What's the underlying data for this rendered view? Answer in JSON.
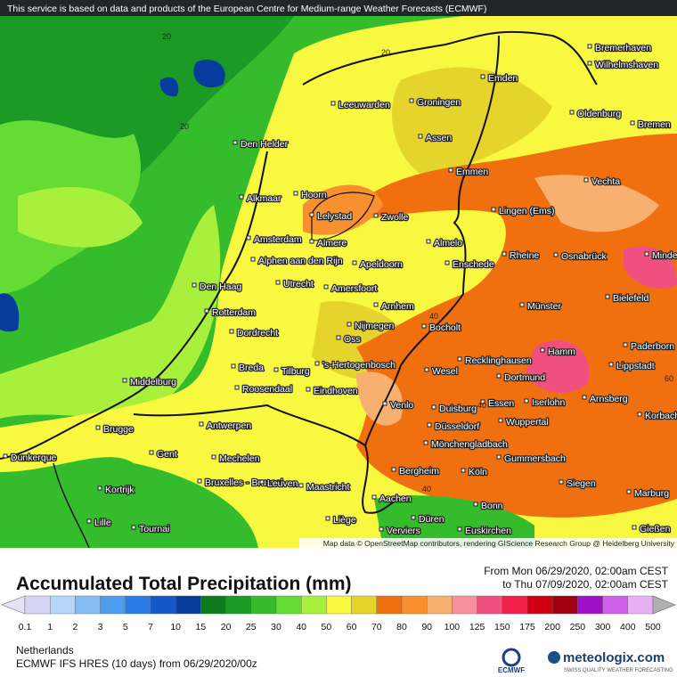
{
  "header": {
    "notice": "This service is based on data and products of the European Centre for Medium-range Weather Forecasts (ECMWF)"
  },
  "map": {
    "cities": [
      "Bremerhaven",
      "Wilhelmshaven",
      "Emden",
      "Leeuwarden",
      "Groningen",
      "Oldenburg",
      "Bremen",
      "Den Helder",
      "Assen",
      "Emmen",
      "Vechta",
      "Hoorn",
      "Alkmaar",
      "Lelystad",
      "Zwolle",
      "Lingen (Ems)",
      "Amsterdam",
      "Almere",
      "Almelo",
      "Rheine",
      "Osnabrück",
      "Minden",
      "Alphen aan den Rijn",
      "Apeldoorn",
      "Enschede",
      "Den Haag",
      "Utrecht",
      "Amersfoort",
      "Bielefeld",
      "Arnhem",
      "Münster",
      "Rotterdam",
      "Nijmegen",
      "Bocholt",
      "Dordrecht",
      "Oss",
      "Hamm",
      "Paderborn",
      "Recklinghausen",
      "Breda",
      "Tilburg",
      "'s-Hertogenbosch",
      "Wesel",
      "Lippstadt",
      "Middelburg",
      "Dortmund",
      "Roosendaal",
      "Eindhoven",
      "Essen",
      "Iserlohn",
      "Arnsberg",
      "Venlo",
      "Duisburg",
      "Korbach",
      "Antwerpen",
      "Brugge",
      "Düsseldorf",
      "Wuppertal",
      "Mönchengladbach",
      "Gent",
      "Dunkerque",
      "Mechelen",
      "Gummersbach",
      "Bergheim",
      "Köln",
      "Bruxelles - Brussel",
      "Leuven",
      "Maastricht",
      "Siegen",
      "Kortrijk",
      "Marburg",
      "Aachen",
      "Bonn",
      "Liège",
      "Düren",
      "Lille",
      "Tournai",
      "Verviers",
      "Euskirchen",
      "Gießen"
    ],
    "contour_labels": [
      "20",
      "20",
      "20",
      "40",
      "40",
      "40",
      "60"
    ],
    "attribution": "Map data © OpenStreetMap contributors, rendering GIScience Research Group @ Heidelberg University"
  },
  "legend": {
    "title": "Accumulated Total Precipitation (mm)",
    "period": {
      "from": "From Mon 06/29/2020, 02:00am CEST",
      "to": "to Thu 07/09/2020, 02:00am CEST"
    },
    "levels": [
      0.1,
      1,
      2,
      3,
      5,
      7,
      10,
      15,
      20,
      25,
      30,
      40,
      50,
      60,
      70,
      80,
      90,
      100,
      125,
      150,
      175,
      200,
      250,
      300,
      400,
      500
    ],
    "colors": [
      "#e6e2f6",
      "#d6d4f2",
      "#b4d4f8",
      "#84bcf6",
      "#4c9cf0",
      "#2a7ce6",
      "#1458c8",
      "#083c9c",
      "#0e7a1e",
      "#1c9a26",
      "#34bc2c",
      "#64dc34",
      "#a8f03c",
      "#f8f840",
      "#e4d42c",
      "#f07010",
      "#f89030",
      "#f8b070",
      "#f8909c",
      "#f05080",
      "#f02048",
      "#d00010",
      "#a00010",
      "#a010c8",
      "#d060e8",
      "#e8b0f4",
      "#b0b0b0"
    ]
  },
  "footer": {
    "region": "Netherlands",
    "model": "ECMWF IFS HRES (10 days) from 06/29/2020/00z",
    "ecmwf_logo": "ECMWF",
    "brand": "meteologix.com",
    "tagline": "SWISS QUALITY WEATHER FORECASTING"
  }
}
